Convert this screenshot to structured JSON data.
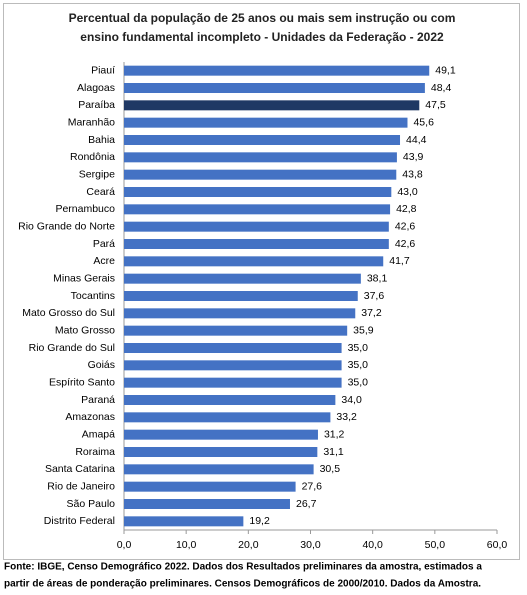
{
  "chart_data": {
    "type": "hbar",
    "title": [
      "Percentual da população de 25 anos ou mais sem instrução ou com",
      "ensino fundamental incompleto - Unidades da Federação - 2022"
    ],
    "categories": [
      "Piauí",
      "Alagoas",
      "Paraíba",
      "Maranhão",
      "Bahia",
      "Rondônia",
      "Sergipe",
      "Ceará",
      "Pernambuco",
      "Rio Grande do Norte",
      "Pará",
      "Acre",
      "Minas Gerais",
      "Tocantins",
      "Mato Grosso do Sul",
      "Mato Grosso",
      "Rio Grande do Sul",
      "Goiás",
      "Espírito Santo",
      "Paraná",
      "Amazonas",
      "Amapá",
      "Roraima",
      "Santa Catarina",
      "Rio de Janeiro",
      "São Paulo",
      "Distrito Federal"
    ],
    "values": [
      49.1,
      48.4,
      47.5,
      45.6,
      44.4,
      43.9,
      43.8,
      43.0,
      42.8,
      42.6,
      42.6,
      41.7,
      38.1,
      37.6,
      37.2,
      35.9,
      35.0,
      35.0,
      35.0,
      34.0,
      33.2,
      31.2,
      31.1,
      30.5,
      27.6,
      26.7,
      19.2
    ],
    "value_labels": [
      "49,1",
      "48,4",
      "47,5",
      "45,6",
      "44,4",
      "43,9",
      "43,8",
      "43,0",
      "42,8",
      "42,6",
      "42,6",
      "41,7",
      "38,1",
      "37,6",
      "37,2",
      "35,9",
      "35,0",
      "35,0",
      "35,0",
      "34,0",
      "33,2",
      "31,2",
      "31,1",
      "30,5",
      "27,6",
      "26,7",
      "19,2"
    ],
    "colors": [
      "#4472c4",
      "#4472c4",
      "#1f3864",
      "#4472c4",
      "#4472c4",
      "#4472c4",
      "#4472c4",
      "#4472c4",
      "#4472c4",
      "#4472c4",
      "#4472c4",
      "#4472c4",
      "#4472c4",
      "#4472c4",
      "#4472c4",
      "#4472c4",
      "#4472c4",
      "#4472c4",
      "#4472c4",
      "#4472c4",
      "#4472c4",
      "#4472c4",
      "#4472c4",
      "#4472c4",
      "#4472c4",
      "#4472c4",
      "#4472c4"
    ],
    "xlim": [
      0,
      60
    ],
    "xticks": [
      {
        "value": 0,
        "label": "0,0"
      },
      {
        "value": 10,
        "label": "10,0"
      },
      {
        "value": 20,
        "label": "20,0"
      },
      {
        "value": 30,
        "label": "30,0"
      },
      {
        "value": 40,
        "label": "40,0"
      },
      {
        "value": 50,
        "label": "50,0"
      },
      {
        "value": 60,
        "label": "60,0"
      }
    ],
    "source": [
      "Fonte: IBGE, Censo Demográfico 2022. Dados dos Resultados preliminares da amostra, estimados a",
      "partir de áreas de ponderação preliminares. Censos Demográficos de 2000/2010. Dados da Amostra."
    ]
  }
}
